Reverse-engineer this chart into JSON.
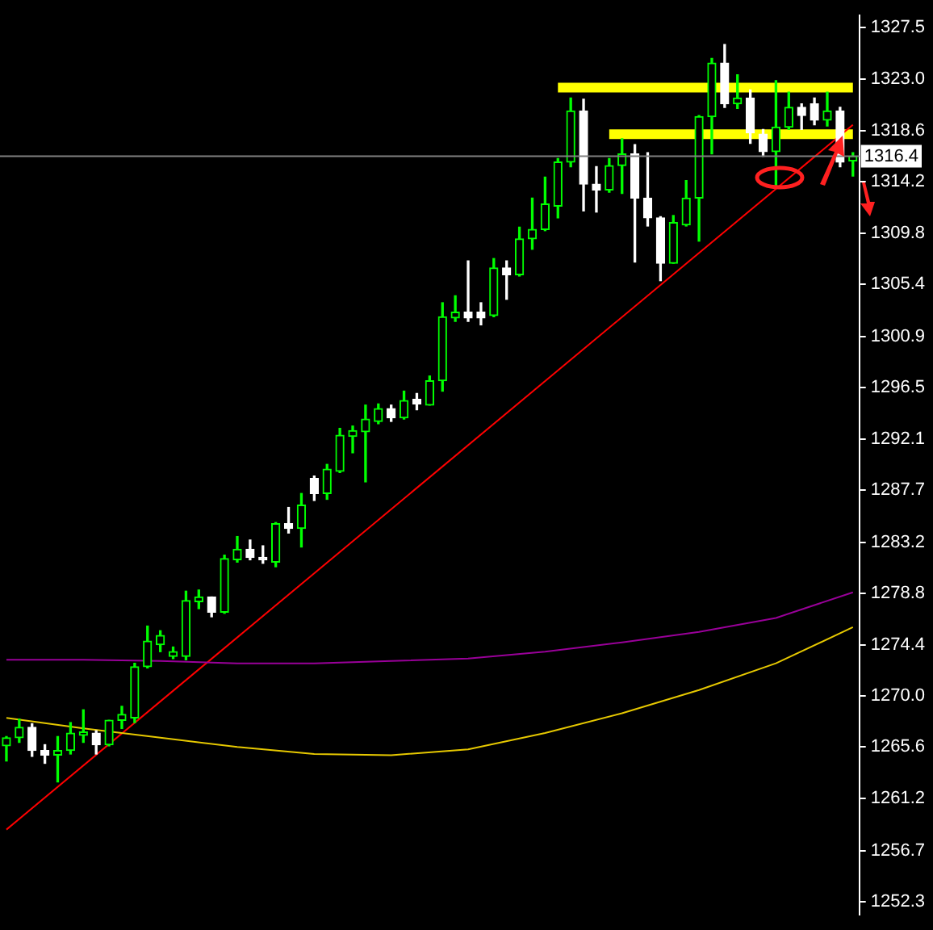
{
  "chart_data": {
    "type": "candlestick",
    "colors": [
      "#00ff00",
      "#00ff00",
      "#ffffff",
      "#ffffff",
      "#00ff00",
      "#00ff00",
      "#00ff00",
      "#ffffff",
      "#00ff00",
      "#00ff00",
      "#00ff00",
      "#00ff00",
      "#00ff00",
      "#00ff00",
      "#00ff00",
      "#00ff00",
      "#ffffff",
      "#00ff00",
      "#00ff00",
      "#ffffff",
      "#ffffff",
      "#00ff00",
      "#ffffff",
      "#00ff00",
      "#ffffff",
      "#00ff00",
      "#00ff00",
      "#00ff00",
      "#00ff00",
      "#00ff00",
      "#ffffff",
      "#00ff00",
      "#ffffff",
      "#00ff00",
      "#00ff00",
      "#00ff00",
      "#ffffff",
      "#ffffff",
      "#00ff00",
      "#ffffff",
      "#00ff00",
      "#00ff00",
      "#00ff00",
      "#00ff00",
      "#00ff00",
      "#ffffff",
      "#ffffff",
      "#00ff00",
      "#00ff00",
      "#ffffff",
      "#ffffff",
      "#ffffff",
      "#00ff00",
      "#00ff00",
      "#00ff00",
      "#00ff00",
      "#ffffff",
      "#00ff00",
      "#ffffff",
      "#ffffff",
      "#00ff00",
      "#00ff00",
      "#ffffff",
      "#ffffff",
      "#00ff00",
      "#ffffff",
      "#00ff00"
    ],
    "categories": [
      null,
      null,
      null,
      null,
      null,
      null,
      null,
      null,
      null,
      null,
      null,
      null,
      null,
      null,
      null,
      null,
      null,
      null,
      null,
      null,
      null,
      null,
      null,
      null,
      null,
      null,
      null,
      null,
      null,
      null,
      null,
      null,
      null,
      null,
      null,
      null,
      null,
      null,
      null,
      null,
      null,
      null,
      null,
      null,
      null,
      null,
      null,
      null,
      null,
      null,
      null,
      null,
      null,
      null,
      null,
      null,
      null,
      null,
      null,
      null,
      null,
      null,
      null,
      null,
      null,
      null,
      null
    ],
    "ohlc": [
      [
        1265.7,
        1266.5,
        1264.4,
        1266.4
      ],
      [
        1266.4,
        1268.0,
        1266.0,
        1267.3
      ],
      [
        1267.3,
        1267.6,
        1264.8,
        1265.3
      ],
      [
        1265.3,
        1265.8,
        1264.2,
        1264.9
      ],
      [
        1264.9,
        1266.5,
        1262.6,
        1265.3
      ],
      [
        1265.3,
        1267.7,
        1265.0,
        1266.8
      ],
      [
        1266.6,
        1268.8,
        1266.0,
        1266.9
      ],
      [
        1266.8,
        1267.0,
        1265.0,
        1265.8
      ],
      [
        1265.8,
        1267.9,
        1265.7,
        1267.9
      ],
      [
        1267.9,
        1269.1,
        1267.2,
        1268.4
      ],
      [
        1268.1,
        1272.8,
        1267.7,
        1272.5
      ],
      [
        1272.5,
        1276.0,
        1272.4,
        1274.7
      ],
      [
        1274.4,
        1275.6,
        1273.8,
        1275.2
      ],
      [
        1273.4,
        1274.2,
        1273.2,
        1273.8
      ],
      [
        1273.4,
        1279.0,
        1273.1,
        1278.2
      ],
      [
        1278.1,
        1279.1,
        1277.5,
        1278.5
      ],
      [
        1278.5,
        1278.5,
        1276.8,
        1277.2
      ],
      [
        1277.2,
        1282.1,
        1277.1,
        1281.8
      ],
      [
        1281.7,
        1283.7,
        1281.5,
        1282.6
      ],
      [
        1282.6,
        1283.4,
        1281.7,
        1281.9
      ],
      [
        1281.9,
        1282.9,
        1281.4,
        1281.7
      ],
      [
        1281.5,
        1284.9,
        1281.1,
        1284.8
      ],
      [
        1284.8,
        1286.2,
        1284.0,
        1284.4
      ],
      [
        1284.4,
        1287.4,
        1282.8,
        1286.4
      ],
      [
        1288.7,
        1288.9,
        1286.8,
        1287.4
      ],
      [
        1287.4,
        1289.9,
        1286.9,
        1289.5
      ],
      [
        1289.3,
        1293.0,
        1289.2,
        1292.4
      ],
      [
        1292.3,
        1293.2,
        1290.9,
        1292.8
      ],
      [
        1292.7,
        1295.0,
        1288.4,
        1293.8
      ],
      [
        1293.6,
        1295.1,
        1293.4,
        1294.7
      ],
      [
        1294.7,
        1295.0,
        1293.6,
        1293.9
      ],
      [
        1293.9,
        1296.2,
        1293.8,
        1295.4
      ],
      [
        1295.5,
        1296.0,
        1294.6,
        1295.1
      ],
      [
        1295.0,
        1297.5,
        1295.0,
        1297.1
      ],
      [
        1297.1,
        1303.8,
        1296.2,
        1302.6
      ],
      [
        1302.5,
        1304.4,
        1302.2,
        1303.0
      ],
      [
        1303.0,
        1307.4,
        1302.2,
        1302.5
      ],
      [
        1303.0,
        1303.8,
        1301.9,
        1302.5
      ],
      [
        1302.7,
        1307.6,
        1302.6,
        1306.8
      ],
      [
        1306.8,
        1307.4,
        1304.1,
        1306.2
      ],
      [
        1306.2,
        1310.3,
        1306.1,
        1309.3
      ],
      [
        1309.3,
        1312.8,
        1308.4,
        1310.1
      ],
      [
        1310.1,
        1314.6,
        1310.0,
        1312.3
      ],
      [
        1312.1,
        1316.2,
        1311.1,
        1315.9
      ],
      [
        1315.9,
        1321.4,
        1315.5,
        1320.3
      ],
      [
        1320.3,
        1321.3,
        1311.7,
        1314.0
      ],
      [
        1314.0,
        1315.5,
        1311.6,
        1313.5
      ],
      [
        1313.5,
        1316.2,
        1313.3,
        1315.6
      ],
      [
        1315.6,
        1317.9,
        1313.2,
        1316.6
      ],
      [
        1316.6,
        1317.4,
        1307.3,
        1312.8
      ],
      [
        1312.8,
        1316.7,
        1310.4,
        1311.1
      ],
      [
        1311.1,
        1311.2,
        1305.7,
        1307.2
      ],
      [
        1307.2,
        1311.3,
        1307.2,
        1310.7
      ],
      [
        1310.5,
        1314.3,
        1310.4,
        1312.8
      ],
      [
        1312.8,
        1319.9,
        1309.1,
        1319.8
      ],
      [
        1319.8,
        1324.8,
        1316.6,
        1324.4
      ],
      [
        1324.4,
        1326.0,
        1320.6,
        1320.9
      ],
      [
        1320.9,
        1323.4,
        1320.5,
        1321.4
      ],
      [
        1321.4,
        1322.1,
        1317.5,
        1318.4
      ],
      [
        1318.3,
        1318.7,
        1316.4,
        1316.8
      ],
      [
        1316.8,
        1322.9,
        1313.8,
        1318.9
      ],
      [
        1318.9,
        1321.9,
        1318.7,
        1320.6
      ],
      [
        1320.6,
        1320.9,
        1318.7,
        1319.9
      ],
      [
        1320.9,
        1321.4,
        1319.1,
        1319.5
      ],
      [
        1319.5,
        1321.9,
        1319.0,
        1320.3
      ],
      [
        1320.3,
        1320.6,
        1315.5,
        1315.9
      ],
      [
        1316.0,
        1316.7,
        1314.7,
        1316.4
      ]
    ],
    "series": [
      {
        "type": "line",
        "color": "#990099",
        "values": [
          1273.1,
          null,
          null,
          null,
          null,
          null,
          1273.1,
          null,
          null,
          null,
          null,
          null,
          1273.0,
          null,
          null,
          null,
          null,
          null,
          1272.8,
          null,
          null,
          null,
          null,
          null,
          1272.8,
          null,
          null,
          null,
          null,
          null,
          1273.0,
          null,
          null,
          null,
          null,
          null,
          1273.2,
          null,
          null,
          null,
          null,
          null,
          1273.8,
          null,
          null,
          null,
          null,
          null,
          1274.6,
          null,
          null,
          null,
          null,
          null,
          1275.5,
          null,
          null,
          null,
          null,
          null,
          1276.7,
          null,
          null,
          null,
          null,
          null,
          1278.9
        ]
      },
      {
        "type": "line",
        "color": "#e6c800",
        "values": [
          1268.1,
          null,
          null,
          null,
          null,
          null,
          1267.2,
          null,
          null,
          null,
          null,
          null,
          1266.4,
          null,
          null,
          null,
          null,
          null,
          1265.6,
          null,
          null,
          null,
          null,
          null,
          1265.0,
          null,
          null,
          null,
          null,
          null,
          1264.9,
          null,
          null,
          null,
          null,
          null,
          1265.4,
          null,
          null,
          null,
          null,
          null,
          1266.8,
          null,
          null,
          null,
          null,
          null,
          1268.5,
          null,
          null,
          null,
          null,
          null,
          1270.5,
          null,
          null,
          null,
          null,
          null,
          1272.8,
          null,
          null,
          null,
          null,
          null,
          1275.9
        ]
      },
      {
        "type": "line",
        "color": "#ff0000",
        "values": [
          1258.5,
          null,
          null,
          null,
          null,
          null,
          null,
          null,
          null,
          null,
          null,
          null,
          null,
          null,
          null,
          null,
          null,
          null,
          null,
          null,
          null,
          null,
          null,
          null,
          null,
          null,
          null,
          null,
          null,
          null,
          null,
          null,
          null,
          null,
          null,
          null,
          null,
          null,
          null,
          null,
          null,
          null,
          null,
          null,
          null,
          null,
          null,
          null,
          null,
          null,
          null,
          null,
          null,
          null,
          null,
          null,
          null,
          null,
          null,
          null,
          null,
          null,
          null,
          null,
          null,
          null,
          1319.1
        ]
      },
      {
        "type": "line",
        "color": "#ffff00",
        "values": [
          null,
          null,
          null,
          null,
          null,
          null,
          null,
          null,
          null,
          null,
          null,
          null,
          null,
          null,
          null,
          null,
          null,
          null,
          null,
          null,
          null,
          null,
          null,
          null,
          null,
          null,
          null,
          null,
          null,
          null,
          null,
          null,
          null,
          null,
          null,
          null,
          null,
          null,
          null,
          null,
          null,
          null,
          null,
          1322.3,
          null,
          null,
          null,
          null,
          null,
          null,
          null,
          null,
          null,
          null,
          null,
          null,
          null,
          null,
          null,
          null,
          null,
          null,
          null,
          null,
          null,
          null,
          1322.3
        ]
      },
      {
        "type": "line",
        "color": "#ffff00",
        "values": [
          null,
          null,
          null,
          null,
          null,
          null,
          null,
          null,
          null,
          null,
          null,
          null,
          null,
          null,
          null,
          null,
          null,
          null,
          null,
          null,
          null,
          null,
          null,
          null,
          null,
          null,
          null,
          null,
          null,
          null,
          null,
          null,
          null,
          null,
          null,
          null,
          null,
          null,
          null,
          null,
          null,
          null,
          null,
          null,
          null,
          null,
          null,
          1318.3,
          null,
          null,
          null,
          null,
          null,
          null,
          null,
          null,
          null,
          null,
          null,
          null,
          null,
          null,
          null,
          null,
          null,
          null,
          1318.3
        ]
      }
    ],
    "ylim": [
      1251.2,
      1328.5
    ],
    "yticks": [
      1252.3,
      1256.7,
      1261.2,
      1265.6,
      {
        "value": 1270,
        "label": "1270.0"
      },
      1274.4,
      1278.8,
      1283.2,
      1287.7,
      1292.1,
      1296.5,
      1300.9,
      1305.4,
      1309.8,
      1314.2,
      1318.6,
      {
        "value": 1323,
        "label": "1323.0"
      },
      1327.5
    ],
    "ref_lines": [
      {
        "axis": "y",
        "value": 1316.4,
        "label": "1316.4",
        "color": "#808080"
      }
    ],
    "tick_labels": "y",
    "grid": false,
    "legend": false
  }
}
